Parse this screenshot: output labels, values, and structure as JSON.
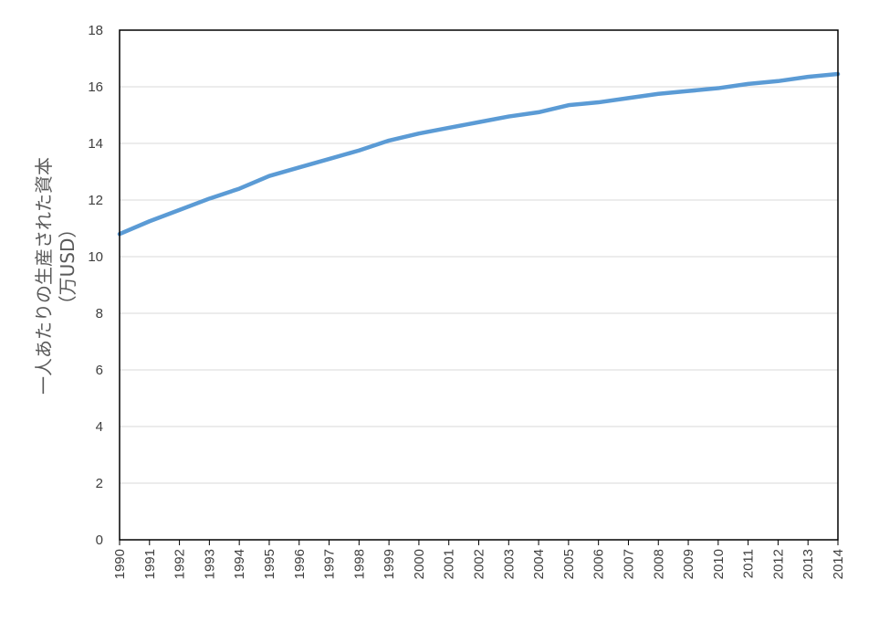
{
  "chart_data": {
    "type": "line",
    "title": "",
    "xlabel": "",
    "ylabel": "一人あたりの生産された資本",
    "ylabel_unit": "（万USD）",
    "x": [
      "1990",
      "1991",
      "1992",
      "1993",
      "1994",
      "1995",
      "1996",
      "1997",
      "1998",
      "1999",
      "2000",
      "2001",
      "2002",
      "2003",
      "2004",
      "2005",
      "2006",
      "2007",
      "2008",
      "2009",
      "2010",
      "2011",
      "2012",
      "2013",
      "2014"
    ],
    "series": [
      {
        "values": [
          10.8,
          11.25,
          11.65,
          12.05,
          12.4,
          12.85,
          13.15,
          13.45,
          13.75,
          14.1,
          14.35,
          14.55,
          14.75,
          14.95,
          15.1,
          15.35,
          15.45,
          15.6,
          15.75,
          15.85,
          15.95,
          16.1,
          16.2,
          16.35,
          16.45
        ],
        "color": "#5b9bd5"
      }
    ],
    "ylim": [
      0,
      18
    ],
    "yticks": [
      "0",
      "2",
      "4",
      "6",
      "8",
      "10",
      "12",
      "14",
      "16",
      "18"
    ],
    "grid": true,
    "legend": "none",
    "colors": {
      "line": "#5b9bd5",
      "grid": "#d9d9d9",
      "axis": "#000000",
      "tick_text": "#404040"
    }
  }
}
